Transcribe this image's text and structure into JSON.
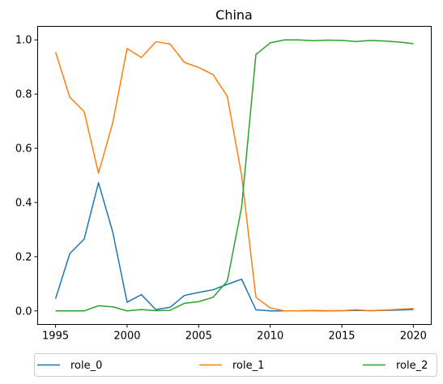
{
  "chart_data": {
    "type": "line",
    "title": "China",
    "xlabel": "",
    "ylabel": "",
    "xlim": [
      1993.75,
      2021.25
    ],
    "ylim": [
      -0.05,
      1.05
    ],
    "xticks": [
      1995,
      2000,
      2005,
      2010,
      2015,
      2020
    ],
    "yticks": [
      0.0,
      0.2,
      0.4,
      0.6,
      0.8,
      1.0
    ],
    "xtick_labels": [
      "1995",
      "2000",
      "2005",
      "2010",
      "2015",
      "2020"
    ],
    "ytick_labels": [
      "0.0",
      "0.2",
      "0.4",
      "0.6",
      "0.8",
      "1.0"
    ],
    "grid": false,
    "legend_position": "bottom",
    "x": [
      1995,
      1996,
      1997,
      1998,
      1999,
      2000,
      2001,
      2002,
      2003,
      2004,
      2005,
      2006,
      2007,
      2008,
      2009,
      2010,
      2011,
      2012,
      2013,
      2014,
      2015,
      2016,
      2017,
      2018,
      2019,
      2020
    ],
    "series": [
      {
        "name": "role_0",
        "color": "#1f77b4",
        "values": [
          0.045,
          0.212,
          0.265,
          0.473,
          0.29,
          0.032,
          0.06,
          0.005,
          0.013,
          0.057,
          0.068,
          0.078,
          0.098,
          0.117,
          0.004,
          0.0,
          0.0,
          0.0,
          0.001,
          0.0,
          0.001,
          0.002,
          0.001,
          0.002,
          0.003,
          0.005
        ]
      },
      {
        "name": "role_1",
        "color": "#ff7f0e",
        "values": [
          0.955,
          0.788,
          0.735,
          0.508,
          0.695,
          0.968,
          0.935,
          0.993,
          0.985,
          0.917,
          0.898,
          0.872,
          0.792,
          0.5,
          0.05,
          0.011,
          0.0,
          0.0,
          0.002,
          0.001,
          0.001,
          0.004,
          0.001,
          0.003,
          0.006,
          0.009
        ]
      },
      {
        "name": "role_2",
        "color": "#2ca02c",
        "values": [
          0.0,
          0.0,
          0.0,
          0.019,
          0.015,
          0.0,
          0.005,
          0.001,
          0.002,
          0.028,
          0.034,
          0.05,
          0.11,
          0.383,
          0.946,
          0.989,
          1.0,
          1.0,
          0.997,
          0.999,
          0.998,
          0.994,
          0.998,
          0.996,
          0.992,
          0.986
        ]
      }
    ]
  }
}
